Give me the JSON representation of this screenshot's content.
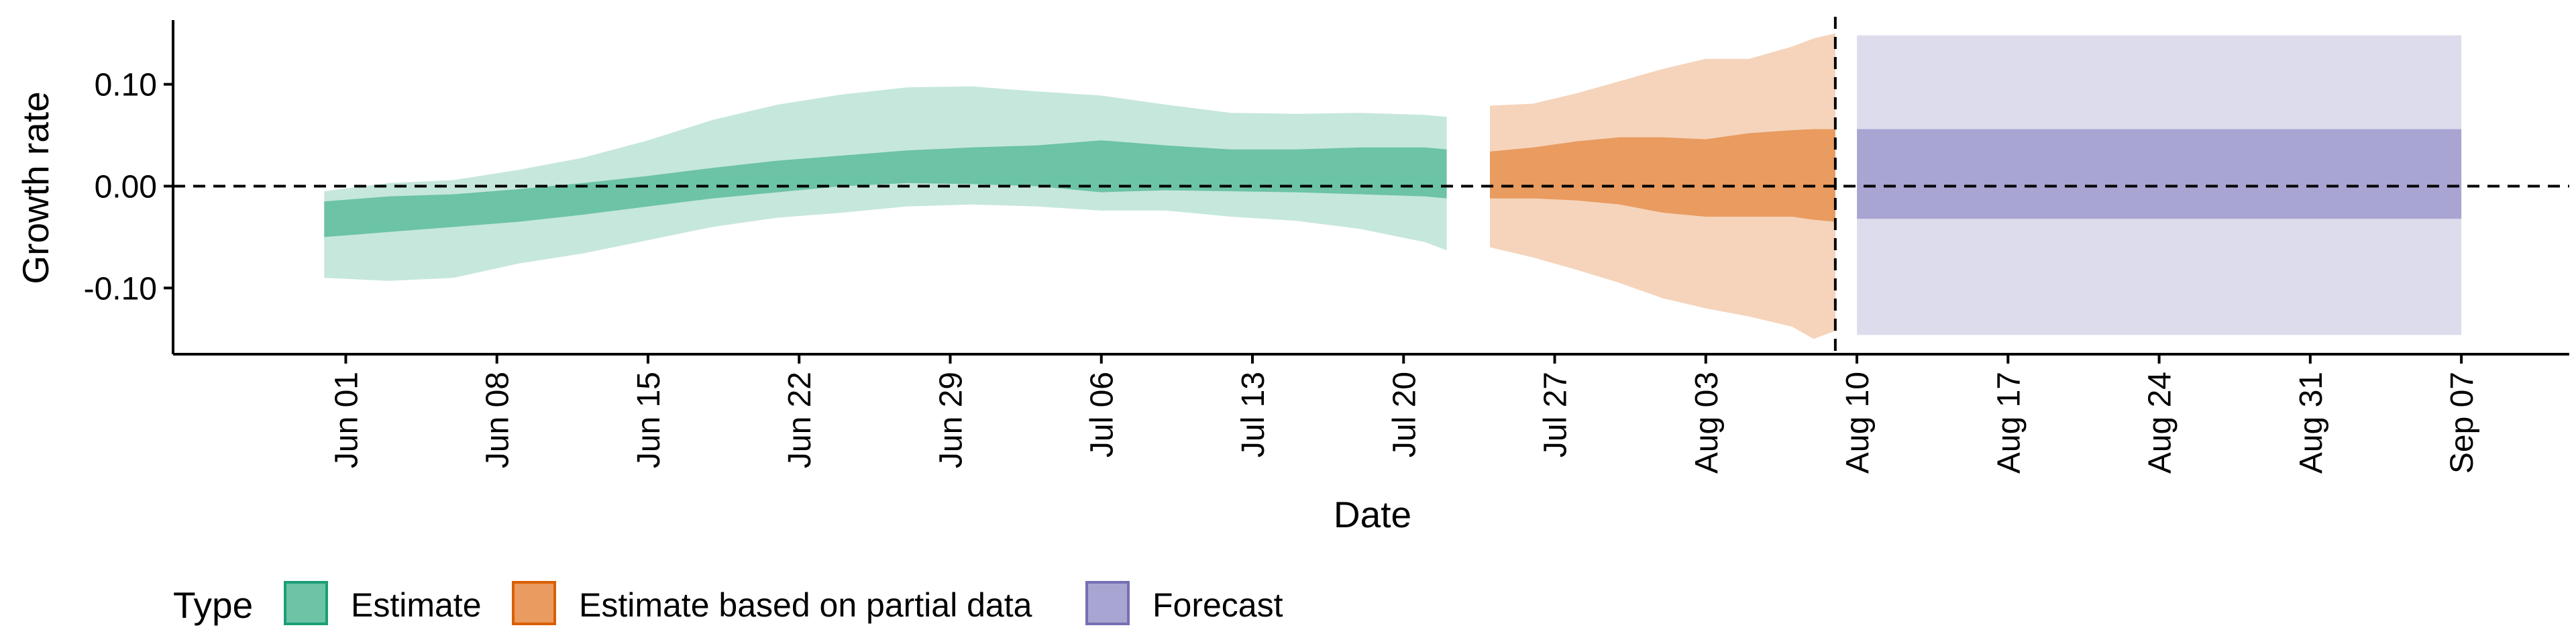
{
  "chart_data": {
    "type": "area",
    "title": "",
    "xlabel": "Date",
    "ylabel": "Growth rate",
    "x_range": [
      "2020-05-24",
      "2020-09-12"
    ],
    "ylim": [
      -0.165,
      0.163
    ],
    "y_ticks": [
      {
        "value": 0.1,
        "label": "0.10"
      },
      {
        "value": 0.0,
        "label": "0.00"
      },
      {
        "value": -0.1,
        "label": "-0.10"
      }
    ],
    "x_ticks": [
      {
        "date": "2020-06-01",
        "label": "Jun 01"
      },
      {
        "date": "2020-06-08",
        "label": "Jun 08"
      },
      {
        "date": "2020-06-15",
        "label": "Jun 15"
      },
      {
        "date": "2020-06-22",
        "label": "Jun 22"
      },
      {
        "date": "2020-06-29",
        "label": "Jun 29"
      },
      {
        "date": "2020-07-06",
        "label": "Jul 06"
      },
      {
        "date": "2020-07-13",
        "label": "Jul 13"
      },
      {
        "date": "2020-07-20",
        "label": "Jul 20"
      },
      {
        "date": "2020-07-27",
        "label": "Jul 27"
      },
      {
        "date": "2020-08-03",
        "label": "Aug 03"
      },
      {
        "date": "2020-08-10",
        "label": "Aug 10"
      },
      {
        "date": "2020-08-17",
        "label": "Aug 17"
      },
      {
        "date": "2020-08-24",
        "label": "Aug 24"
      },
      {
        "date": "2020-08-31",
        "label": "Aug 31"
      },
      {
        "date": "2020-09-07",
        "label": "Sep 07"
      }
    ],
    "hline": 0,
    "vline_date": "2020-08-09",
    "legend": {
      "title": "Type",
      "position": "bottom"
    },
    "series": [
      {
        "name": "Estimate",
        "color_inner": "#6cc3a5",
        "color_outer": "#c6e7dc",
        "border": "#1b9e77",
        "x": [
          "2020-05-31",
          "2020-06-03",
          "2020-06-06",
          "2020-06-09",
          "2020-06-12",
          "2020-06-15",
          "2020-06-18",
          "2020-06-21",
          "2020-06-24",
          "2020-06-27",
          "2020-06-30",
          "2020-07-03",
          "2020-07-06",
          "2020-07-09",
          "2020-07-12",
          "2020-07-15",
          "2020-07-18",
          "2020-07-21",
          "2020-07-22"
        ],
        "lower90": [
          -0.09,
          -0.093,
          -0.09,
          -0.076,
          -0.066,
          -0.053,
          -0.04,
          -0.031,
          -0.026,
          -0.02,
          -0.018,
          -0.02,
          -0.024,
          -0.024,
          -0.03,
          -0.034,
          -0.042,
          -0.055,
          -0.063
        ],
        "lower50": [
          -0.05,
          -0.045,
          -0.04,
          -0.035,
          -0.028,
          -0.02,
          -0.012,
          -0.006,
          0.0,
          0.003,
          0.002,
          0.0,
          -0.006,
          -0.004,
          -0.005,
          -0.006,
          -0.008,
          -0.01,
          -0.012
        ],
        "upper50": [
          -0.015,
          -0.01,
          -0.008,
          -0.003,
          0.003,
          0.01,
          0.018,
          0.025,
          0.03,
          0.035,
          0.038,
          0.04,
          0.045,
          0.04,
          0.036,
          0.036,
          0.038,
          0.038,
          0.036
        ],
        "upper90": [
          -0.005,
          0.003,
          0.006,
          0.016,
          0.028,
          0.045,
          0.065,
          0.08,
          0.09,
          0.097,
          0.098,
          0.093,
          0.089,
          0.08,
          0.072,
          0.071,
          0.072,
          0.07,
          0.068
        ]
      },
      {
        "name": "Estimate based on partial data",
        "color_inner": "#e99b60",
        "color_outer": "#f5d4bb",
        "border": "#d95f02",
        "x": [
          "2020-07-24",
          "2020-07-26",
          "2020-07-28",
          "2020-07-30",
          "2020-08-01",
          "2020-08-03",
          "2020-08-05",
          "2020-08-07",
          "2020-08-08",
          "2020-08-09"
        ],
        "lower90": [
          -0.06,
          -0.07,
          -0.082,
          -0.095,
          -0.11,
          -0.12,
          -0.128,
          -0.138,
          -0.15,
          -0.142
        ],
        "lower50": [
          -0.012,
          -0.012,
          -0.014,
          -0.018,
          -0.026,
          -0.03,
          -0.03,
          -0.03,
          -0.033,
          -0.035
        ],
        "upper50": [
          0.034,
          0.038,
          0.044,
          0.048,
          0.048,
          0.046,
          0.052,
          0.055,
          0.056,
          0.056
        ],
        "upper90": [
          0.079,
          0.081,
          0.091,
          0.103,
          0.115,
          0.125,
          0.125,
          0.137,
          0.145,
          0.15
        ]
      },
      {
        "name": "Forecast",
        "color_inner": "#a9a5d2",
        "color_outer": "#dddced",
        "border": "#7570b3",
        "x": [
          "2020-08-10",
          "2020-09-07"
        ],
        "lower90": [
          -0.146,
          -0.146
        ],
        "lower50": [
          -0.032,
          -0.032
        ],
        "upper50": [
          0.056,
          0.056
        ],
        "upper90": [
          0.148,
          0.148
        ]
      }
    ]
  }
}
